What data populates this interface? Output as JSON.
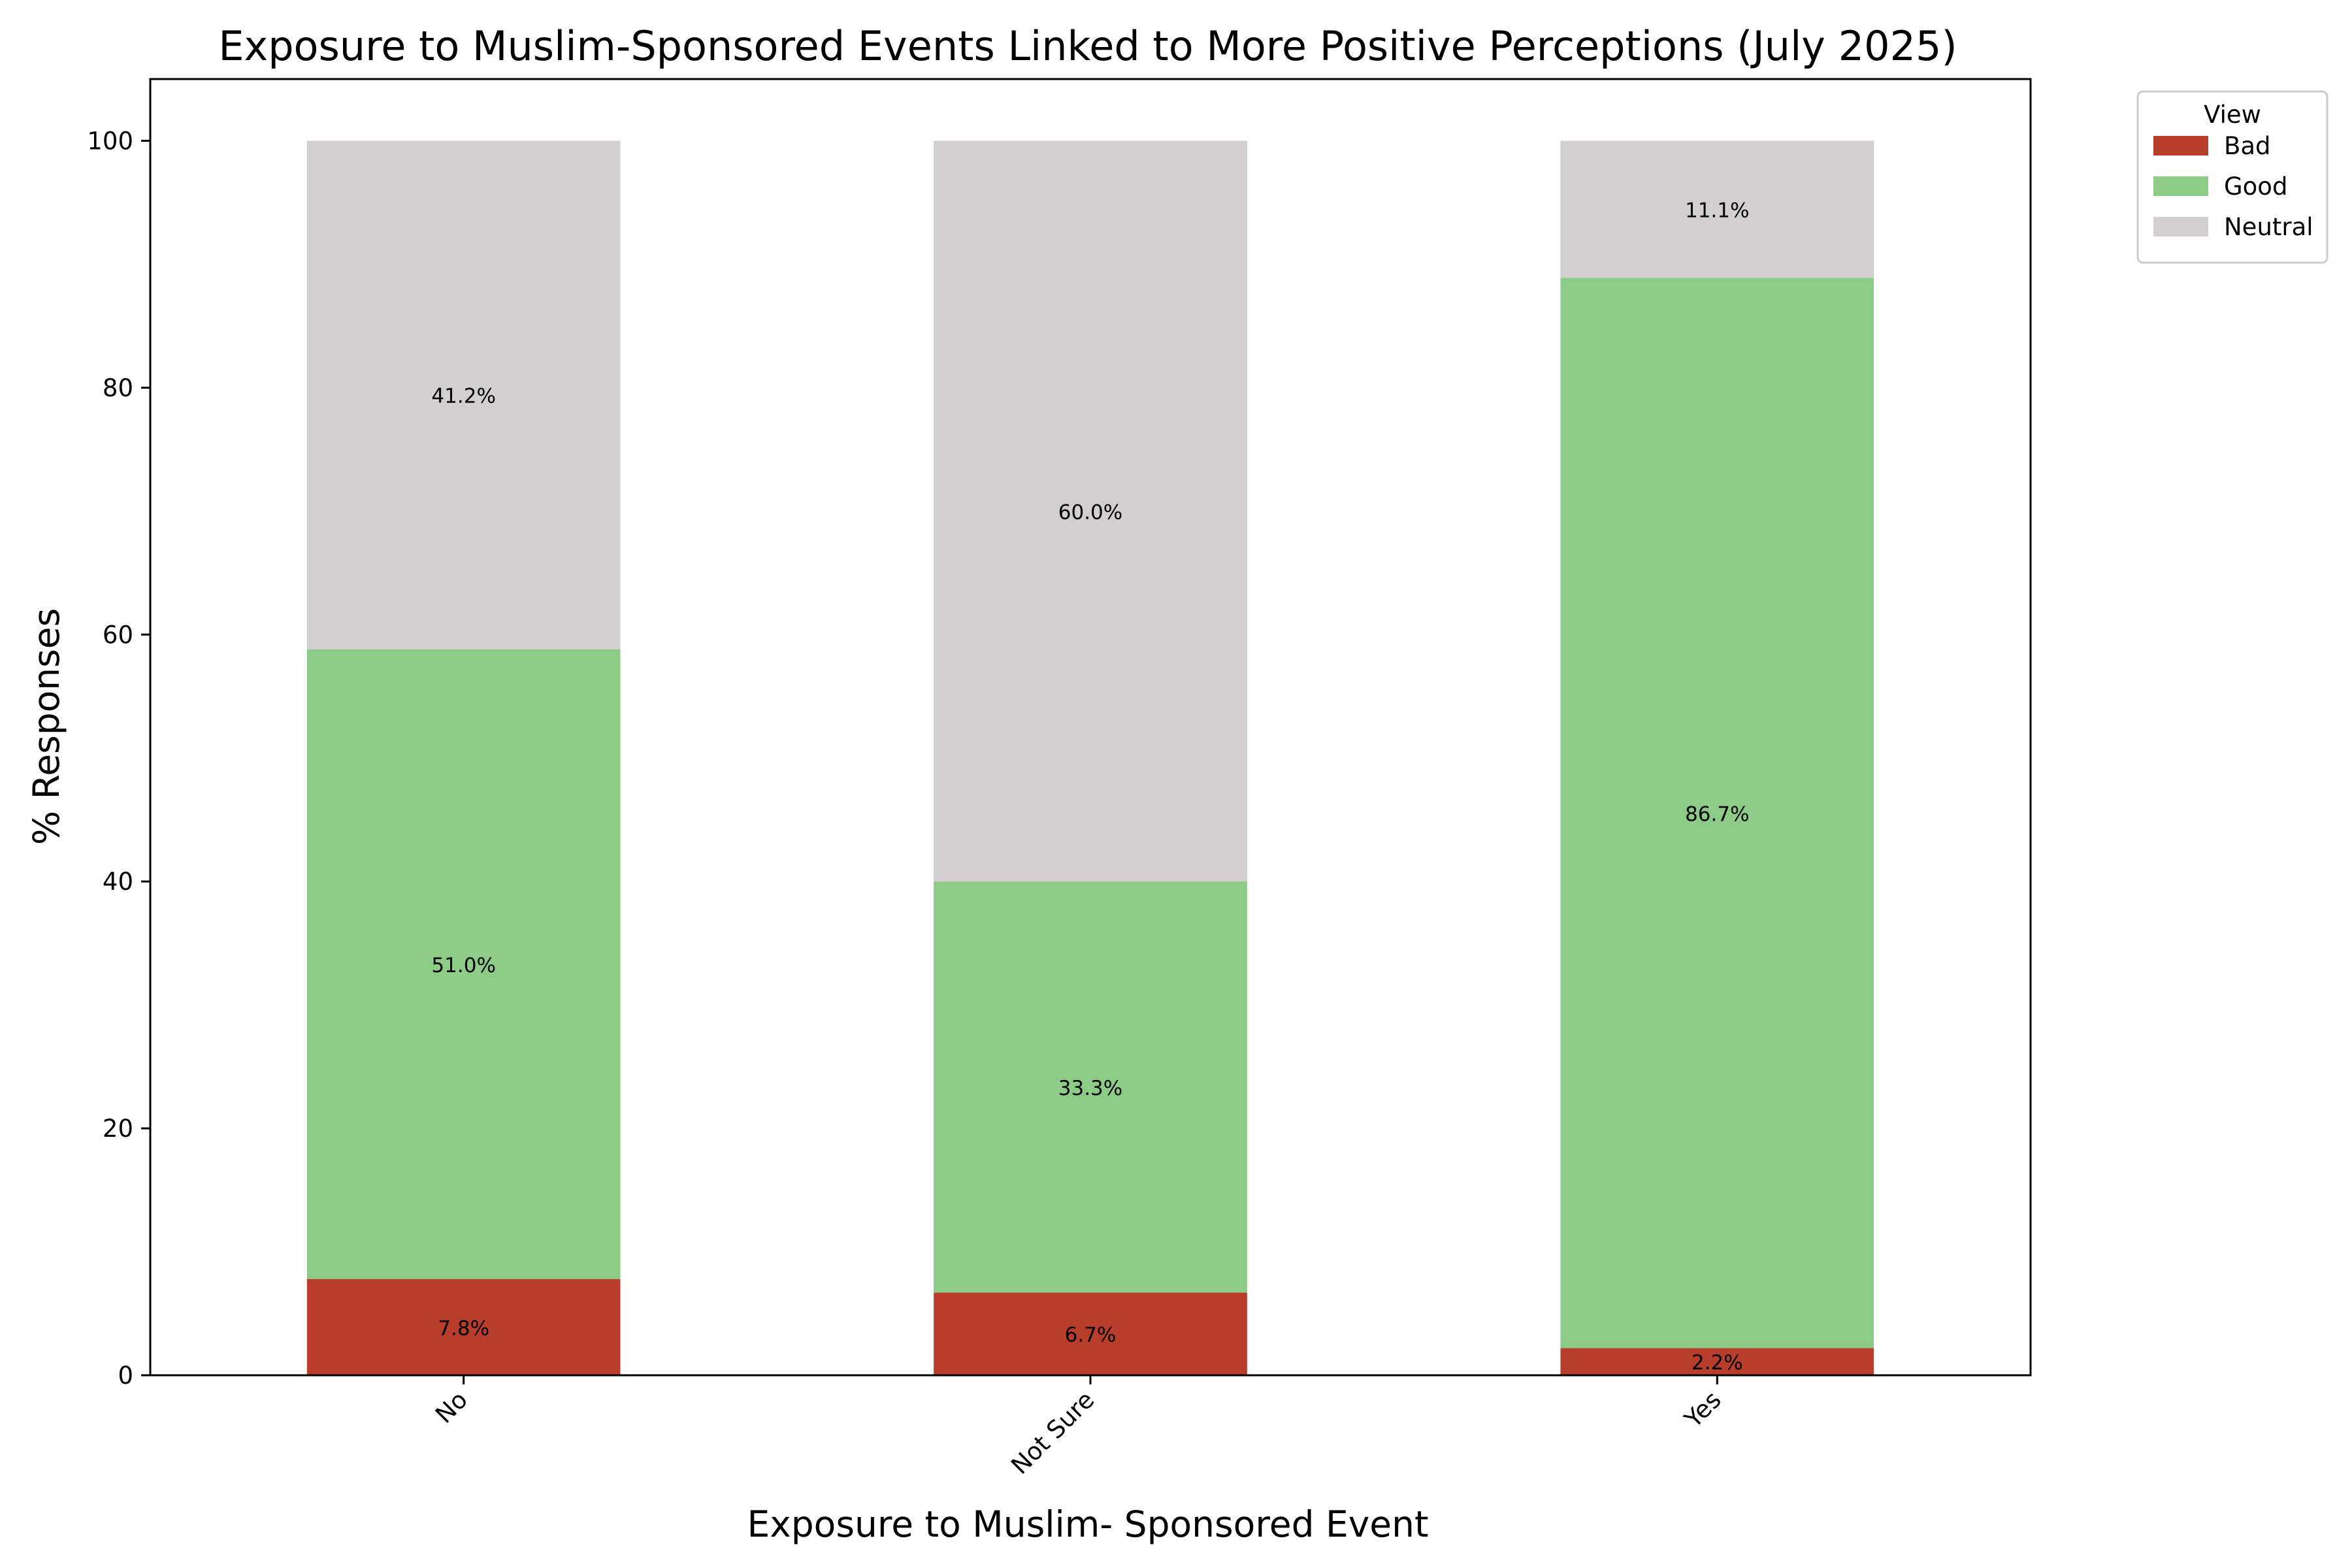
{
  "chart_data": {
    "type": "bar",
    "stacked": true,
    "title": "Exposure to Muslim-Sponsored Events Linked to More Positive Perceptions (July 2025)",
    "xlabel": "Exposure to Muslim- Sponsored Event",
    "ylabel": "% Responses",
    "categories": [
      "No",
      "Not Sure",
      "Yes"
    ],
    "ylim": [
      0,
      105
    ],
    "yticks": [
      0,
      20,
      40,
      60,
      80,
      100
    ],
    "legend": {
      "title": "View",
      "placement": "outside top-right"
    },
    "grid": false,
    "series": [
      {
        "name": "Bad",
        "color": "#b83d2b",
        "values": [
          7.8,
          6.7,
          2.2
        ],
        "labels": [
          "7.8%",
          "6.7%",
          "2.2%"
        ]
      },
      {
        "name": "Good",
        "color": "#8dcc86",
        "values": [
          51.0,
          33.3,
          86.7
        ],
        "labels": [
          "51.0%",
          "33.3%",
          "86.7%"
        ]
      },
      {
        "name": "Neutral",
        "color": "#d1cfd0",
        "values": [
          41.2,
          60.0,
          11.1
        ],
        "labels": [
          "41.2%",
          "60.0%",
          "11.1%"
        ]
      }
    ]
  }
}
